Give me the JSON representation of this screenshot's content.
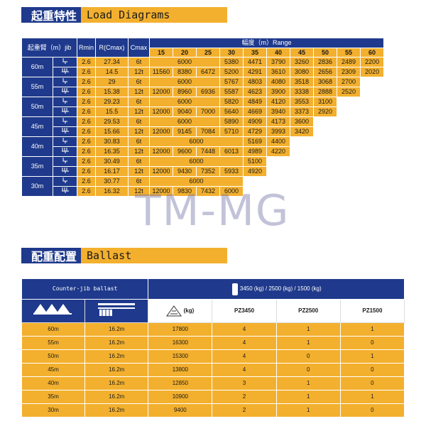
{
  "load_section": {
    "title_cn": "起重特性",
    "title_en": "Load Diagrams"
  },
  "ballast_section": {
    "title_cn": "配重配置",
    "title_en": "Ballast"
  },
  "load_table": {
    "h_jib": "起重臂（m）jib",
    "h_rmin": "Rmin",
    "h_rcmax": "R(Cmax)",
    "h_cmax": "Cmax",
    "h_range": "幅度（m）Range",
    "ranges": [
      "15",
      "20",
      "25",
      "30",
      "35",
      "40",
      "45",
      "50",
      "55",
      "60"
    ],
    "groups": [
      {
        "jib": "60m",
        "rows": [
          {
            "hook": "2-fall",
            "rmin": "2.6",
            "rc": "27.34",
            "cmax": "6t",
            "merged": "6000",
            "span": 3,
            "vals": [
              "5380",
              "4471",
              "3790",
              "3260",
              "2836",
              "2489",
              "2200"
            ]
          },
          {
            "hook": "4-fall",
            "rmin": "2.6",
            "rc": "14.5",
            "cmax": "12t",
            "merged": "",
            "span": 0,
            "vals": [
              "11560",
              "8380",
              "6472",
              "5200",
              "4291",
              "3610",
              "3080",
              "2656",
              "2309",
              "2020"
            ]
          }
        ]
      },
      {
        "jib": "55m",
        "rows": [
          {
            "hook": "2-fall",
            "rmin": "2.6",
            "rc": "29",
            "cmax": "6t",
            "merged": "6000",
            "span": 3,
            "vals": [
              "5767",
              "4803",
              "4080",
              "3518",
              "3068",
              "2700"
            ]
          },
          {
            "hook": "4-fall",
            "rmin": "2.6",
            "rc": "15.38",
            "cmax": "12t",
            "merged": "",
            "span": 0,
            "vals": [
              "12000",
              "8960",
              "6936",
              "5587",
              "4623",
              "3900",
              "3338",
              "2888",
              "2520"
            ]
          }
        ]
      },
      {
        "jib": "50m",
        "rows": [
          {
            "hook": "2-fall",
            "rmin": "2.6",
            "rc": "29.23",
            "cmax": "6t",
            "merged": "6000",
            "span": 3,
            "vals": [
              "5820",
              "4849",
              "4120",
              "3553",
              "3100"
            ]
          },
          {
            "hook": "4-fall",
            "rmin": "2.6",
            "rc": "15.5",
            "cmax": "12t",
            "merged": "",
            "span": 0,
            "vals": [
              "12000",
              "9040",
              "7000",
              "5640",
              "4669",
              "3940",
              "3373",
              "2920"
            ]
          }
        ]
      },
      {
        "jib": "45m",
        "rows": [
          {
            "hook": "2-fall",
            "rmin": "2.6",
            "rc": "29.53",
            "cmax": "6t",
            "merged": "6000",
            "span": 3,
            "vals": [
              "5890",
              "4909",
              "4173",
              "3600"
            ]
          },
          {
            "hook": "4-fall",
            "rmin": "2.6",
            "rc": "15.66",
            "cmax": "12t",
            "merged": "",
            "span": 0,
            "vals": [
              "12000",
              "9145",
              "7084",
              "5710",
              "4729",
              "3993",
              "3420"
            ]
          }
        ]
      },
      {
        "jib": "40m",
        "rows": [
          {
            "hook": "2-fall",
            "rmin": "2.6",
            "rc": "30.83",
            "cmax": "6t",
            "merged": "6000",
            "span": 4,
            "vals": [
              "5169",
              "4400"
            ]
          },
          {
            "hook": "4-fall",
            "rmin": "2.6",
            "rc": "16.35",
            "cmax": "12t",
            "merged": "",
            "span": 0,
            "vals": [
              "12000",
              "9600",
              "7448",
              "6013",
              "4989",
              "4220"
            ]
          }
        ]
      },
      {
        "jib": "35m",
        "rows": [
          {
            "hook": "2-fall",
            "rmin": "2.6",
            "rc": "30.49",
            "cmax": "6t",
            "merged": "6000",
            "span": 4,
            "vals": [
              "5100"
            ]
          },
          {
            "hook": "4-fall",
            "rmin": "2.6",
            "rc": "16.17",
            "cmax": "12t",
            "merged": "",
            "span": 0,
            "vals": [
              "12000",
              "9430",
              "7352",
              "5933",
              "4920"
            ]
          }
        ]
      },
      {
        "jib": "30m",
        "rows": [
          {
            "hook": "2-fall",
            "rmin": "2.6",
            "rc": "30.77",
            "cmax": "6t",
            "merged": "6000",
            "span": 4,
            "vals": []
          },
          {
            "hook": "4-fall",
            "rmin": "2.6",
            "rc": "16.32",
            "cmax": "12t",
            "merged": "",
            "span": 0,
            "vals": [
              "12000",
              "9830",
              "7432",
              "6000"
            ]
          }
        ]
      }
    ]
  },
  "ballast_table": {
    "h_counter": "Counter-jib ballast",
    "h_weights": "3450 (kg) / 2500 (kg) / 1500 (kg)",
    "h_kg": "(kg)",
    "h_pz": [
      "PZ3450",
      "PZ2500",
      "PZ1500"
    ],
    "rows": [
      {
        "jib": "60m",
        "len": "16.2m",
        "kg": "17800",
        "a": "4",
        "b": "1",
        "c": "1"
      },
      {
        "jib": "55m",
        "len": "16.2m",
        "kg": "16300",
        "a": "4",
        "b": "1",
        "c": "0"
      },
      {
        "jib": "50m",
        "len": "16.2m",
        "kg": "15300",
        "a": "4",
        "b": "0",
        "c": "1"
      },
      {
        "jib": "45m",
        "len": "16.2m",
        "kg": "13800",
        "a": "4",
        "b": "0",
        "c": "0"
      },
      {
        "jib": "40m",
        "len": "16.2m",
        "kg": "12850",
        "a": "3",
        "b": "1",
        "c": "0"
      },
      {
        "jib": "35m",
        "len": "16.2m",
        "kg": "10900",
        "a": "2",
        "b": "1",
        "c": "1"
      },
      {
        "jib": "30m",
        "len": "16.2m",
        "kg": "9400",
        "a": "2",
        "b": "1",
        "c": "0"
      }
    ]
  },
  "watermark": "TM-MG",
  "colors": {
    "navy": "#1f3a8c",
    "gold": "#f3b02e"
  }
}
